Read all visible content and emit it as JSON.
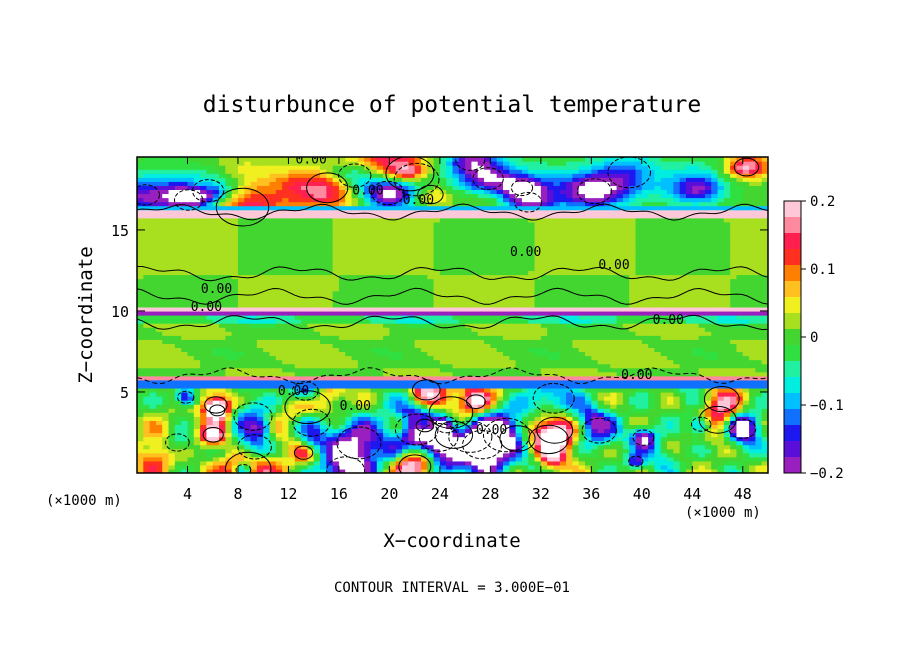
{
  "chart_data": {
    "type": "heatmap",
    "title": "disturbunce of potential temperature",
    "xlabel": "X−coordinate",
    "ylabel": "Z−coordinate",
    "x_unit_left": "(×1000 m)",
    "x_unit_right": "(×1000 m)",
    "footer": "CONTOUR INTERVAL = 3.000E−01",
    "xlim": [
      0,
      50
    ],
    "ylim": [
      0,
      19.5
    ],
    "x_ticks": [
      4,
      8,
      12,
      16,
      20,
      24,
      28,
      32,
      36,
      40,
      44,
      48
    ],
    "x_tick_labels": [
      "4",
      "8",
      "12",
      "16",
      "20",
      "24",
      "28",
      "32",
      "36",
      "40",
      "44",
      "48"
    ],
    "y_ticks": [
      5,
      10,
      15
    ],
    "y_tick_labels": [
      "5",
      "10",
      "15"
    ],
    "colorbar": {
      "range": [
        -0.2,
        0.2
      ],
      "ticks": [
        0.2,
        0.1,
        0,
        -0.1,
        -0.2
      ],
      "tick_labels": [
        "0.2",
        "0.1",
        "0",
        "−0.1",
        "−0.2"
      ],
      "colors": [
        "#9a1fbf",
        "#5a0fd8",
        "#1e18f0",
        "#1070ff",
        "#00c0ff",
        "#00eee0",
        "#20f0a0",
        "#30e040",
        "#44d630",
        "#a8e020",
        "#f0f020",
        "#ffc020",
        "#ff8000",
        "#ff3020",
        "#ff2050",
        "#ff8aa0",
        "#ffc8d8"
      ]
    },
    "contour_interval": 0.3,
    "contour_labels": [
      {
        "text": "0.00",
        "x": 13.8,
        "z": 19.1
      },
      {
        "text": "0.00",
        "x": 18.3,
        "z": 17.2
      },
      {
        "text": "0.00",
        "x": 22.3,
        "z": 16.6
      },
      {
        "text": "0.00",
        "x": 30.8,
        "z": 13.4
      },
      {
        "text": "0.00",
        "x": 37.8,
        "z": 12.6
      },
      {
        "text": "0.00",
        "x": 6.3,
        "z": 11.1
      },
      {
        "text": "0.00",
        "x": 5.5,
        "z": 10.0
      },
      {
        "text": "0.00",
        "x": 42.1,
        "z": 9.2
      },
      {
        "text": "0.00",
        "x": 39.6,
        "z": 5.8
      },
      {
        "text": "0.00",
        "x": 12.4,
        "z": 4.8
      },
      {
        "text": "0.00",
        "x": 17.3,
        "z": 3.9
      },
      {
        "text": "0.00",
        "x": 28.1,
        "z": 2.4
      }
    ],
    "bands": [
      {
        "z0": 0.0,
        "z1": 5.2,
        "field": "turbulent, mixed -0.2 to 0.2"
      },
      {
        "z0": 5.2,
        "z1": 6.1,
        "field": "-0.1 (blue/white stripes)"
      },
      {
        "z0": 6.1,
        "z1": 9.8,
        "field": "≈0 (green)"
      },
      {
        "z0": 9.8,
        "z1": 10.3,
        "field": "-0.2 (purple)"
      },
      {
        "z0": 10.3,
        "z1": 16.2,
        "field": "≈0 (green)"
      },
      {
        "z0": 16.2,
        "z1": 19.5,
        "field": "mixed -0.2 to 0.2"
      }
    ]
  }
}
